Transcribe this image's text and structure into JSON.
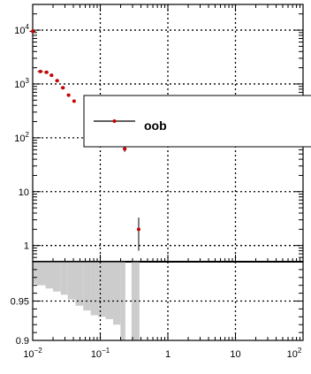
{
  "chart_data": [
    {
      "type": "scatter",
      "title": "",
      "xlabel": "",
      "ylabel": "",
      "x_scale": "log",
      "y_scale": "log",
      "xlim": [
        0.01,
        100
      ],
      "ylim": [
        0.5,
        30000
      ],
      "grid": true,
      "legend_position": "right",
      "yticks": [
        {
          "v": 10000,
          "base": "10",
          "exp": "4"
        },
        {
          "v": 1000,
          "base": "10",
          "exp": "3"
        },
        {
          "v": 100,
          "base": "10",
          "exp": "2"
        },
        {
          "v": 10,
          "base": "10",
          "exp": ""
        },
        {
          "v": 1,
          "base": "1",
          "exp": ""
        }
      ],
      "series": [
        {
          "name": "oob",
          "color": "#cc0000",
          "points": [
            {
              "x": 0.01,
              "y": 9500,
              "xerr": [
                0.009,
                0.011
              ],
              "yerr": [
                9300,
                9700
              ]
            },
            {
              "x": 0.013,
              "y": 1700,
              "xerr": [
                0.0118,
                0.0142
              ],
              "yerr": [
                1650,
                1750
              ]
            },
            {
              "x": 0.016,
              "y": 1650,
              "xerr": [
                0.0148,
                0.0172
              ],
              "yerr": [
                1600,
                1700
              ]
            },
            {
              "x": 0.019,
              "y": 1450,
              "xerr": [
                0.0178,
                0.0202
              ],
              "yerr": [
                1400,
                1500
              ]
            },
            {
              "x": 0.023,
              "y": 1150,
              "xerr": [
                0.0215,
                0.0245
              ],
              "yerr": [
                1100,
                1200
              ]
            },
            {
              "x": 0.028,
              "y": 850,
              "xerr": [
                0.026,
                0.03
              ],
              "yerr": [
                810,
                890
              ]
            },
            {
              "x": 0.034,
              "y": 620,
              "xerr": [
                0.032,
                0.036
              ],
              "yerr": [
                590,
                650
              ]
            },
            {
              "x": 0.041,
              "y": 480,
              "xerr": [
                0.039,
                0.043
              ],
              "yerr": [
                455,
                505
              ]
            },
            {
              "x": 0.23,
              "y": 62,
              "xerr": [
                0.215,
                0.245
              ],
              "yerr": [
                55,
                70
              ]
            },
            {
              "x": 0.37,
              "y": 2,
              "xerr": [
                0.355,
                0.385
              ],
              "yerr": [
                0.8,
                3.3
              ]
            }
          ]
        }
      ]
    },
    {
      "type": "bar",
      "title": "",
      "x_scale": "log",
      "xlim": [
        0.01,
        100
      ],
      "ylim": [
        0.9,
        1.0
      ],
      "grid": true,
      "yticks": [
        {
          "v": 0.95,
          "label": "0.95"
        },
        {
          "v": 0.9,
          "label": "0.9"
        }
      ],
      "xticks": [
        {
          "v": 0.01,
          "base": "10",
          "exp": "−2"
        },
        {
          "v": 0.1,
          "base": "10",
          "exp": "−1"
        },
        {
          "v": 1,
          "base": "1",
          "exp": ""
        },
        {
          "v": 10,
          "base": "10",
          "exp": ""
        },
        {
          "v": 100,
          "base": "10",
          "exp": "2"
        }
      ],
      "band_color": "#cccccc",
      "bins": [
        {
          "x0": 0.01,
          "x1": 0.0115,
          "lo": 0.972
        },
        {
          "x0": 0.0115,
          "x1": 0.0155,
          "lo": 0.97
        },
        {
          "x0": 0.0155,
          "x1": 0.02,
          "lo": 0.966
        },
        {
          "x0": 0.02,
          "x1": 0.026,
          "lo": 0.962
        },
        {
          "x0": 0.026,
          "x1": 0.033,
          "lo": 0.958
        },
        {
          "x0": 0.033,
          "x1": 0.043,
          "lo": 0.952
        },
        {
          "x0": 0.043,
          "x1": 0.056,
          "lo": 0.944
        },
        {
          "x0": 0.056,
          "x1": 0.072,
          "lo": 0.938
        },
        {
          "x0": 0.072,
          "x1": 0.093,
          "lo": 0.932
        },
        {
          "x0": 0.093,
          "x1": 0.12,
          "lo": 0.93
        },
        {
          "x0": 0.12,
          "x1": 0.155,
          "lo": 0.927
        },
        {
          "x0": 0.155,
          "x1": 0.199,
          "lo": 0.92
        },
        {
          "x0": 0.199,
          "x1": 0.235,
          "lo": 0.9
        },
        {
          "x0": 0.29,
          "x1": 0.38,
          "lo": 0.9
        }
      ]
    }
  ],
  "legend": {
    "label": "oob"
  }
}
